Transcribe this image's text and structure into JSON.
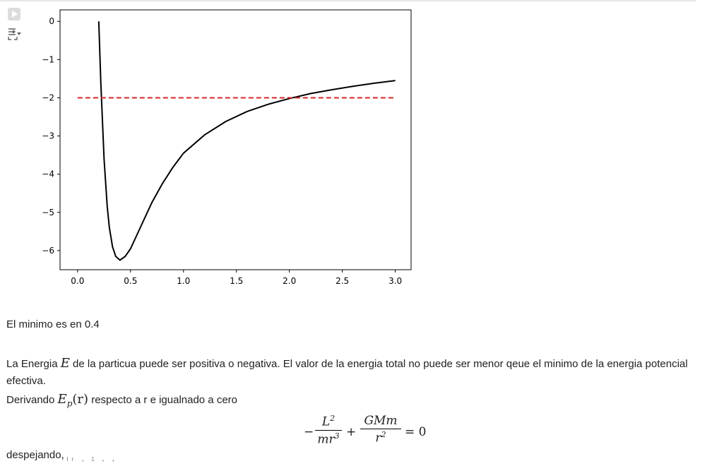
{
  "toolbar": {
    "run_icon": "play-icon",
    "output_toggle_icon": "output-collapse-icon"
  },
  "chart_data": {
    "type": "line",
    "title": "",
    "xlabel": "",
    "ylabel": "",
    "xlim": [
      0.0,
      3.0
    ],
    "ylim": [
      -6.5,
      0.3
    ],
    "x_ticks": [
      "0.0",
      "0.5",
      "1.0",
      "1.5",
      "2.0",
      "2.5",
      "3.0"
    ],
    "y_ticks": [
      "0",
      "−1",
      "−2",
      "−3",
      "−4",
      "−5",
      "−6"
    ],
    "grid": false,
    "legend": "none",
    "series": [
      {
        "style": "solid",
        "color": "#000000",
        "x": [
          0.2,
          0.22,
          0.25,
          0.28,
          0.3,
          0.33,
          0.36,
          0.4,
          0.45,
          0.5,
          0.6,
          0.7,
          0.8,
          0.9,
          1.0,
          1.2,
          1.4,
          1.6,
          1.8,
          2.0,
          2.2,
          2.4,
          2.6,
          2.8,
          3.0
        ],
        "y": [
          0.0,
          -1.65,
          -3.6,
          -4.85,
          -5.4,
          -5.9,
          -6.15,
          -6.25,
          -6.15,
          -5.95,
          -5.35,
          -4.75,
          -4.25,
          -3.82,
          -3.45,
          -2.97,
          -2.62,
          -2.36,
          -2.17,
          -2.02,
          -1.89,
          -1.79,
          -1.7,
          -1.62,
          -1.55
        ]
      },
      {
        "style": "dashed",
        "color": "#d62728",
        "x": [
          0.0,
          3.0
        ],
        "y": [
          -2.0,
          -2.0
        ]
      }
    ]
  },
  "text": {
    "minimum": "El minimo es en 0.4",
    "p1_a": "La Energia ",
    "p1_var": "E",
    "p1_b": " de la particua puede ser positiva o negativa. El valor de la energia total no puede ser menor qeue el minimo de la energia potencial efectiva.",
    "p2_a": "Derivando ",
    "p2_var": "E",
    "p2_sub": "p",
    "p2_arg": "(r)",
    "p2_b": " respecto a r e igualnado a cero",
    "eq_minus": "−",
    "eq_num1": "L",
    "eq_num1_sup": "2",
    "eq_den1": "mr",
    "eq_den1_sup": "3",
    "eq_plus": "+",
    "eq_num2": "GMm",
    "eq_den2": "r",
    "eq_den2_sup": "2",
    "eq_rhs": "= 0",
    "despejando": "despejando,",
    "code_peek": "ᴵʳ  ·  ˡ ·  ·"
  }
}
